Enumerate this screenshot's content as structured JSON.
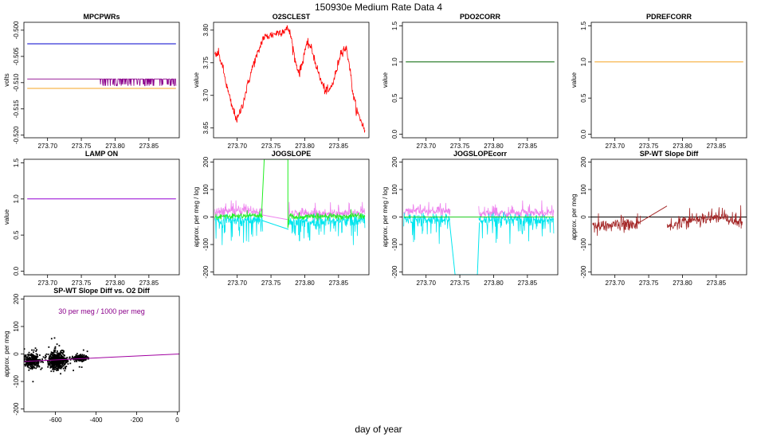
{
  "figure": {
    "title": "150930e   Medium Rate Data 4",
    "xlabel": "day of year"
  },
  "chart_data": [
    {
      "name": "mpcpwrs",
      "type": "line",
      "title": "MPCPWRs",
      "ylabel": "volts",
      "xlim": [
        273.665,
        273.895
      ],
      "ylim": [
        -0.5205,
        -0.4985
      ],
      "xticks": [
        273.7,
        273.75,
        273.8,
        273.85
      ],
      "xtick_labels": [
        "273.70",
        "273.75",
        "273.80",
        "273.85"
      ],
      "yticks": [
        -0.52,
        -0.515,
        -0.51,
        -0.505,
        -0.5
      ],
      "ytick_labels": [
        "-0.520",
        "-0.515",
        "-0.510",
        "-0.505",
        "-0.500"
      ],
      "series": [
        {
          "name": "blue",
          "color": "#0000cd",
          "x": [
            273.67,
            273.89
          ],
          "y": [
            -0.5026,
            -0.5026
          ]
        },
        {
          "name": "orange",
          "color": "#f5a623",
          "x": [
            273.67,
            273.89
          ],
          "y": [
            -0.5111,
            -0.5111
          ]
        },
        {
          "name": "purple",
          "color": "#8b008b",
          "x": [
            273.67,
            273.78,
            273.785,
            273.8,
            273.81,
            273.83,
            273.86,
            273.87,
            273.875,
            273.89
          ],
          "y": [
            -0.5093,
            -0.5093,
            -0.5093,
            -0.5093,
            -0.5093,
            -0.5093,
            -0.5093,
            -0.5093,
            -0.5093,
            -0.5093
          ],
          "noise": "flicker",
          "noise_amp": 0.0013,
          "flicker_from": 273.775
        }
      ]
    },
    {
      "name": "o2sclest",
      "type": "line",
      "title": "O2SCLEST",
      "ylabel": "value",
      "xlim": [
        273.665,
        273.895
      ],
      "ylim": [
        3.635,
        3.812
      ],
      "xticks": [
        273.7,
        273.75,
        273.8,
        273.85
      ],
      "xtick_labels": [
        "273.70",
        "273.75",
        "273.80",
        "273.85"
      ],
      "yticks": [
        3.65,
        3.7,
        3.75,
        3.8
      ],
      "ytick_labels": [
        "3.65",
        "3.70",
        "3.75",
        "3.80"
      ],
      "series": [
        {
          "name": "red",
          "color": "#ff0000",
          "noise": "fuzz",
          "noise_amp": 0.006,
          "x": [
            273.667,
            273.672,
            273.678,
            273.685,
            273.692,
            273.7,
            273.708,
            273.716,
            273.724,
            273.731,
            273.738,
            273.776,
            273.78,
            273.786,
            273.792,
            273.797,
            273.8,
            273.806,
            273.812,
            273.818,
            273.824,
            273.83,
            273.836,
            273.842,
            273.848,
            273.853,
            273.858,
            273.862,
            273.866,
            273.872,
            273.878,
            273.884,
            273.889
          ],
          "y": [
            3.76,
            3.765,
            3.745,
            3.712,
            3.683,
            3.662,
            3.686,
            3.718,
            3.748,
            3.765,
            3.788,
            3.802,
            3.788,
            3.752,
            3.734,
            3.752,
            3.77,
            3.78,
            3.765,
            3.742,
            3.722,
            3.708,
            3.706,
            3.72,
            3.742,
            3.765,
            3.772,
            3.77,
            3.748,
            3.698,
            3.673,
            3.66,
            3.645
          ]
        }
      ]
    },
    {
      "name": "pdo2corr",
      "type": "line",
      "title": "PDO2CORR",
      "ylabel": "value",
      "xlim": [
        273.665,
        273.895
      ],
      "ylim": [
        -0.05,
        1.55
      ],
      "xticks": [
        273.7,
        273.75,
        273.8,
        273.85
      ],
      "xtick_labels": [
        "273.70",
        "273.75",
        "273.80",
        "273.85"
      ],
      "yticks": [
        0.0,
        0.5,
        1.0,
        1.5
      ],
      "ytick_labels": [
        "0.0",
        "0.5",
        "1.0",
        "1.5"
      ],
      "series": [
        {
          "name": "green",
          "color": "#006400",
          "x": [
            273.67,
            273.89
          ],
          "y": [
            1.0,
            1.0
          ]
        }
      ]
    },
    {
      "name": "pdrefcorr",
      "type": "line",
      "title": "PDREFCORR",
      "ylabel": "value",
      "xlim": [
        273.665,
        273.895
      ],
      "ylim": [
        -0.05,
        1.55
      ],
      "xticks": [
        273.7,
        273.75,
        273.8,
        273.85
      ],
      "xtick_labels": [
        "273.70",
        "273.75",
        "273.80",
        "273.85"
      ],
      "yticks": [
        0.0,
        0.5,
        1.0,
        1.5
      ],
      "ytick_labels": [
        "0.0",
        "0.5",
        "1.0",
        "1.5"
      ],
      "series": [
        {
          "name": "orange",
          "color": "#f5a623",
          "x": [
            273.67,
            273.89
          ],
          "y": [
            1.0,
            1.0
          ]
        }
      ]
    },
    {
      "name": "lamp-on",
      "type": "line",
      "title": "LAMP ON",
      "ylabel": "value",
      "xlim": [
        273.665,
        273.895
      ],
      "ylim": [
        -0.05,
        1.55
      ],
      "xticks": [
        273.7,
        273.75,
        273.8,
        273.85
      ],
      "xtick_labels": [
        "273.70",
        "273.75",
        "273.80",
        "273.85"
      ],
      "yticks": [
        0.0,
        0.5,
        1.0,
        1.5
      ],
      "ytick_labels": [
        "0.0",
        "0.5",
        "1.0",
        "1.5"
      ],
      "series": [
        {
          "name": "purple",
          "color": "#9400d3",
          "x": [
            273.67,
            273.89
          ],
          "y": [
            1.0,
            1.0
          ]
        }
      ]
    },
    {
      "name": "jogslope",
      "type": "line",
      "title": "JOGSLOPE",
      "ylabel": "approx. per meg / log",
      "xlim": [
        273.665,
        273.895
      ],
      "ylim": [
        -210,
        210
      ],
      "xticks": [
        273.7,
        273.75,
        273.8,
        273.85
      ],
      "xtick_labels": [
        "273.70",
        "273.75",
        "273.80",
        "273.85"
      ],
      "yticks": [
        -200,
        -100,
        0,
        100,
        200
      ],
      "ytick_labels": [
        "-200",
        "-100",
        "0",
        "100",
        "200"
      ],
      "series": [
        {
          "name": "violet",
          "color": "#ee82ee",
          "noise": "spiky",
          "noise_amp": 18,
          "gap": [
            273.738,
            273.776
          ],
          "x": [
            273.667,
            273.735,
            273.778,
            273.889
          ],
          "y": [
            20,
            22,
            10,
            15
          ]
        },
        {
          "name": "cyan",
          "color": "#00e5ee",
          "noise": "spiky_down",
          "noise_amp": 22,
          "gap": [
            273.738,
            273.776
          ],
          "x": [
            273.667,
            273.735,
            273.778,
            273.889
          ],
          "y": [
            -12,
            -10,
            -15,
            -10
          ]
        },
        {
          "name": "green",
          "color": "#22ee22",
          "noise": "spiky",
          "noise_amp": 10,
          "gap": [
            273.738,
            273.776
          ],
          "x": [
            273.667,
            273.735,
            273.778,
            273.889
          ],
          "y": [
            2,
            5,
            0,
            3
          ]
        },
        {
          "name": "violet-bridge",
          "color": "#ee82ee",
          "x": [
            273.736,
            273.776
          ],
          "y": [
            8,
            -10
          ]
        },
        {
          "name": "cyan-bridge",
          "color": "#00e5ee",
          "x": [
            273.736,
            273.776
          ],
          "y": [
            -12,
            -45
          ]
        },
        {
          "name": "green-spikes",
          "color": "#22ee22",
          "x": [
            273.736,
            273.74,
            273.74,
            273.742,
            273.742,
            273.775,
            273.775,
            273.777
          ],
          "y": [
            5,
            210,
            210,
            210,
            210,
            210,
            -40,
            0
          ]
        }
      ]
    },
    {
      "name": "jogslopecorr",
      "type": "line",
      "title": "JOGSLOPEcorr",
      "ylabel": "approx. per meg / log",
      "xlim": [
        273.665,
        273.895
      ],
      "ylim": [
        -210,
        210
      ],
      "xticks": [
        273.7,
        273.75,
        273.8,
        273.85
      ],
      "xtick_labels": [
        "273.70",
        "273.75",
        "273.80",
        "273.85"
      ],
      "yticks": [
        -200,
        -100,
        0,
        100,
        200
      ],
      "ytick_labels": [
        "-200",
        "-100",
        "0",
        "100",
        "200"
      ],
      "series": [
        {
          "name": "violet",
          "color": "#ee82ee",
          "noise": "spiky",
          "noise_amp": 16,
          "gap": [
            273.736,
            273.778
          ],
          "x": [
            273.667,
            273.735,
            273.779,
            273.889
          ],
          "y": [
            20,
            22,
            10,
            18
          ]
        },
        {
          "name": "cyan",
          "color": "#00e5ee",
          "noise": "spiky_down",
          "noise_amp": 22,
          "gap": [
            273.736,
            273.778
          ],
          "x": [
            273.667,
            273.735,
            273.779,
            273.889
          ],
          "y": [
            -10,
            -8,
            -14,
            -10
          ]
        },
        {
          "name": "green",
          "color": "#22cc22",
          "x": [
            273.667,
            273.889
          ],
          "y": [
            0,
            0
          ]
        },
        {
          "name": "cyan-drop",
          "color": "#00e5ee",
          "x": [
            273.734,
            273.743,
            273.744,
            273.776,
            273.776,
            273.779
          ],
          "y": [
            0,
            -210,
            -210,
            -210,
            -210,
            -20
          ]
        }
      ]
    },
    {
      "name": "sp-wt-slope-diff",
      "type": "line",
      "title": "SP-WT Slope Diff",
      "ylabel": "approx. per meg",
      "xlim": [
        273.665,
        273.895
      ],
      "ylim": [
        -210,
        210
      ],
      "xticks": [
        273.7,
        273.75,
        273.8,
        273.85
      ],
      "xtick_labels": [
        "273.70",
        "273.75",
        "273.80",
        "273.85"
      ],
      "yticks": [
        -200,
        -100,
        0,
        100,
        200
      ],
      "ytick_labels": [
        "-200",
        "-100",
        "0",
        "100",
        "200"
      ],
      "zero_line": true,
      "series": [
        {
          "name": "brown",
          "color": "#a52a2a",
          "noise": "spiky",
          "noise_amp": 22,
          "gap": [
            273.738,
            273.777
          ],
          "x": [
            273.667,
            273.7,
            273.735,
            273.778,
            273.8,
            273.83,
            273.86,
            273.889
          ],
          "y": [
            -30,
            -30,
            -25,
            -35,
            -20,
            -5,
            0,
            -25
          ]
        },
        {
          "name": "brown-bridge",
          "color": "#a52a2a",
          "x": [
            273.736,
            273.777
          ],
          "y": [
            -20,
            40
          ]
        }
      ]
    },
    {
      "name": "sp-wt-vs-o2-diff",
      "type": "scatter",
      "title": "SP-WT Slope Diff vs. O2 Diff",
      "ylabel": "approx. per meg",
      "xlim": [
        -755,
        10
      ],
      "ylim": [
        -210,
        210
      ],
      "xticks": [
        -600,
        -400,
        -200,
        0
      ],
      "xtick_labels": [
        "-600",
        "-400",
        "-200",
        "0"
      ],
      "yticks": [
        -200,
        -100,
        0,
        100,
        200
      ],
      "ytick_labels": [
        "-200",
        "-100",
        "0",
        "100",
        "200"
      ],
      "annotation": "30 per meg  /  1000 per meg",
      "annotation_color": "#8b008b",
      "fit_line": {
        "color": "#a000a0",
        "x": [
          -755,
          10
        ],
        "y": [
          -27,
          0
        ]
      },
      "clusters": [
        {
          "x_center": -715,
          "x_spread": 35,
          "y_center": -25,
          "y_spread": 22,
          "n": 260
        },
        {
          "x_center": -590,
          "x_spread": 45,
          "y_center": -25,
          "y_spread": 28,
          "n": 520
        },
        {
          "x_center": -480,
          "x_spread": 30,
          "y_center": -15,
          "y_spread": 10,
          "n": 160
        }
      ],
      "color": "#000000"
    }
  ]
}
